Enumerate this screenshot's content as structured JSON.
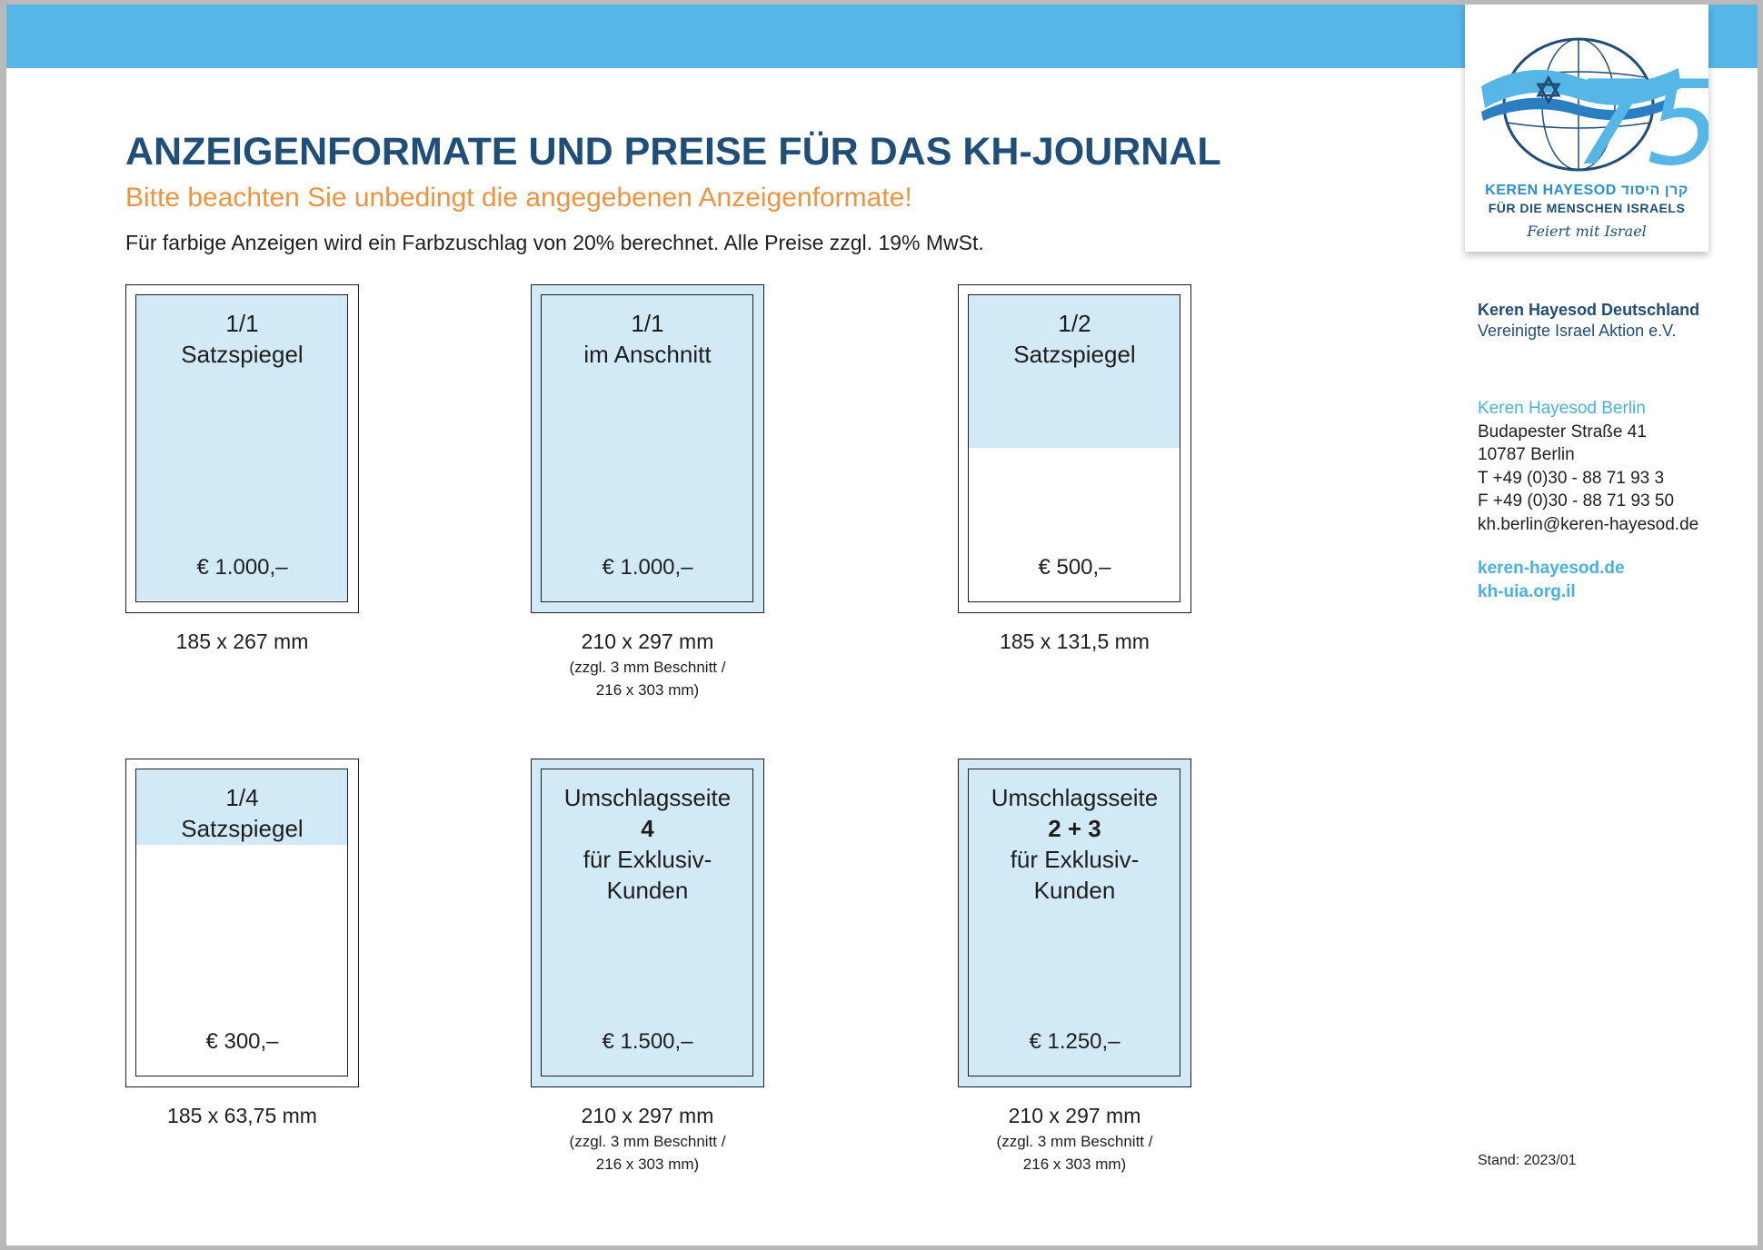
{
  "logo": {
    "number": "75",
    "line1_latin": "KEREN HAYESOD",
    "line1_hebrew": "קרן היסוד",
    "line2": "FÜR DIE MENSCHEN ISRAELS",
    "line3": "Feiert mit Israel"
  },
  "header": {
    "title": "ANZEIGENFORMATE UND PREISE FÜR DAS KH-JOURNAL",
    "subtitle": "Bitte beachten Sie unbedingt die angegebenen Anzeigenformate!",
    "note": "Für farbige Anzeigen wird ein Farbzuschlag von 20% berechnet. Alle Preise zzgl. 19% MwSt."
  },
  "formats": [
    {
      "label1": "1/1",
      "label2": "Satzspiegel",
      "price": "€ 1.000,–",
      "dimension": "185 x 267 mm",
      "fill_fraction": 1.0
    },
    {
      "label1": "1/1",
      "label2": "im Anschnitt",
      "price": "€ 1.000,–",
      "dimension": "210 x 297 mm",
      "bleed_note1": "(zzgl. 3 mm Beschnitt /",
      "bleed_note2": "216 x 303 mm)"
    },
    {
      "label1": "1/2",
      "label2": "Satzspiegel",
      "price": "€ 500,–",
      "dimension": "185 x 131,5 mm",
      "fill_fraction": 0.5
    },
    {
      "label1": "1/4",
      "label2": "Satzspiegel",
      "price": "€ 300,–",
      "dimension": "185 x 63,75 mm",
      "fill_fraction": 0.25
    },
    {
      "label1": "Umschlagsseite",
      "label_bold": "4",
      "label3": "für Exklusiv-",
      "label4": "Kunden",
      "price": "€ 1.500,–",
      "dimension": "210 x 297 mm",
      "bleed_note1": "(zzgl. 3 mm Beschnitt /",
      "bleed_note2": "216 x 303 mm)"
    },
    {
      "label1": "Umschlagsseite",
      "label_bold": "2 + 3",
      "label3": "für Exklusiv-",
      "label4": "Kunden",
      "price": "€ 1.250,–",
      "dimension": "210 x 297 mm",
      "bleed_note1": "(zzgl. 3 mm Beschnitt /",
      "bleed_note2": "216 x 303 mm)"
    }
  ],
  "contact": {
    "org_line1": "Keren Hayesod Deutschland",
    "org_line2": "Vereinigte Israel Aktion e.V.",
    "office": "Keren Hayesod Berlin",
    "street": "Budapester Straße 41",
    "city": "10787 Berlin",
    "phone": "T +49 (0)30 - 88 71 93 3",
    "fax": "F +49 (0)30 - 88 71 93 50",
    "email": "kh.berlin@keren-hayesod.de",
    "web1": "keren-hayesod.de",
    "web2": "kh-uia.org.il"
  },
  "stand": "Stand: 2023/01",
  "colors": {
    "brand_blue": "#56b6e6",
    "navy": "#1f4e79",
    "orange": "#ee9440",
    "ad_fill": "#d2eaf6"
  }
}
